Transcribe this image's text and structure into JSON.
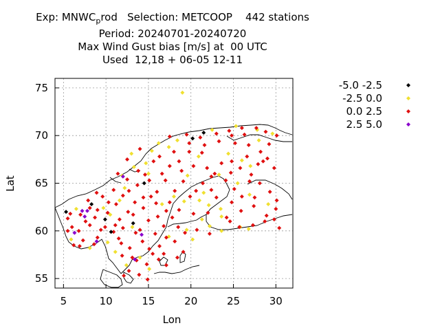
{
  "header": {
    "line1_pre": "Exp: MNWC",
    "line1_sub": "p",
    "line1_post": "rod   Selection: METCOOP    442 stations",
    "line2": "Period: 20240701-20240720",
    "line3": "Max Wind Gust bias [m/s] at  00 UTC",
    "line4": "Used  12,18 + 06-05 12-11"
  },
  "chart_data": {
    "type": "scatter",
    "xlabel": "Lon",
    "ylabel": "Lat",
    "xlim": [
      4,
      32
    ],
    "ylim": [
      54,
      76
    ],
    "xticks": [
      5,
      10,
      15,
      20,
      25,
      30
    ],
    "yticks": [
      55,
      60,
      65,
      70,
      75
    ],
    "grid": true,
    "legend_position": "top-right outside",
    "series": [
      {
        "name": "-5.0 -2.5",
        "color": "#000000",
        "points": [
          [
            5.3,
            62.0
          ],
          [
            8.3,
            62.8
          ],
          [
            13.2,
            60.8
          ],
          [
            14.5,
            65.0
          ],
          [
            21.5,
            70.3
          ],
          [
            20.2,
            69.7
          ],
          [
            9.9,
            61.2
          ],
          [
            10.6,
            59.9
          ]
        ]
      },
      {
        "name": "-2.5 0.0",
        "color": "#f0e030",
        "points": [
          [
            19.0,
            74.5
          ],
          [
            6.5,
            62.3
          ],
          [
            12.2,
            64.5
          ],
          [
            17.4,
            68.8
          ],
          [
            20.9,
            67.8
          ],
          [
            24.4,
            68.1
          ],
          [
            25.3,
            71.0
          ],
          [
            22.5,
            70.6
          ],
          [
            27.8,
            70.6
          ],
          [
            29.6,
            70.2
          ],
          [
            28.0,
            69.5
          ],
          [
            26.0,
            67.4
          ],
          [
            26.9,
            63.8
          ],
          [
            23.3,
            65.9
          ],
          [
            25.5,
            65.0
          ],
          [
            21.5,
            64.0
          ],
          [
            21.0,
            63.2
          ],
          [
            22.1,
            62.7
          ],
          [
            23.5,
            62.3
          ],
          [
            21.3,
            61.2
          ],
          [
            22.2,
            60.5
          ],
          [
            23.6,
            60.0
          ],
          [
            19.5,
            60.1
          ],
          [
            14.0,
            57.2
          ],
          [
            15.1,
            56.0
          ],
          [
            13.1,
            60.4
          ],
          [
            11.1,
            57.8
          ],
          [
            12.4,
            56.4
          ],
          [
            19.2,
            63.1
          ],
          [
            18.0,
            63.6
          ],
          [
            19.6,
            65.8
          ],
          [
            15.4,
            68.4
          ],
          [
            16.2,
            69.2
          ],
          [
            18.4,
            69.5
          ],
          [
            13.3,
            66.7
          ],
          [
            13.0,
            68.1
          ],
          [
            14.7,
            67.1
          ],
          [
            10.5,
            61.7
          ],
          [
            9.7,
            62.4
          ],
          [
            5.9,
            59.1
          ],
          [
            8.1,
            58.2
          ],
          [
            10.2,
            58.8
          ],
          [
            11.6,
            63.2
          ],
          [
            27.0,
            66.8
          ],
          [
            23.6,
            61.5
          ],
          [
            20.2,
            59.1
          ],
          [
            17.4,
            59.4
          ],
          [
            16.6,
            62.8
          ],
          [
            15.0,
            66.0
          ],
          [
            11.9,
            65.8
          ],
          [
            29.1,
            62.8
          ],
          [
            25.8,
            60.4
          ],
          [
            26.8,
            60.2
          ]
        ]
      },
      {
        "name": "0.0 2.5",
        "color": "#e01010",
        "points": [
          [
            5.5,
            61.3
          ],
          [
            6.0,
            60.4
          ],
          [
            5.5,
            60.0
          ],
          [
            6.8,
            60.0
          ],
          [
            7.6,
            61.0
          ],
          [
            8.7,
            61.4
          ],
          [
            9.9,
            60.4
          ],
          [
            10.9,
            59.9
          ],
          [
            11.6,
            61.2
          ],
          [
            12.6,
            62.0
          ],
          [
            13.4,
            63.0
          ],
          [
            14.4,
            62.4
          ],
          [
            15.3,
            63.6
          ],
          [
            16.1,
            61.5
          ],
          [
            16.8,
            60.5
          ],
          [
            17.8,
            61.4
          ],
          [
            18.6,
            62.2
          ],
          [
            17.1,
            59.3
          ],
          [
            18.1,
            58.9
          ],
          [
            16.3,
            58.4
          ],
          [
            15.5,
            57.6
          ],
          [
            14.3,
            58.9
          ],
          [
            13.5,
            59.8
          ],
          [
            12.8,
            58.2
          ],
          [
            13.6,
            56.9
          ],
          [
            14.8,
            56.5
          ],
          [
            12.7,
            55.8
          ],
          [
            13.9,
            55.4
          ],
          [
            11.8,
            58.7
          ],
          [
            8.1,
            60.6
          ],
          [
            7.3,
            59.0
          ],
          [
            6.2,
            58.5
          ],
          [
            9.0,
            59.3
          ],
          [
            10.2,
            61.9
          ],
          [
            11.2,
            62.8
          ],
          [
            12.0,
            63.7
          ],
          [
            13.7,
            64.8
          ],
          [
            15.1,
            65.3
          ],
          [
            16.6,
            66.0
          ],
          [
            17.5,
            66.8
          ],
          [
            18.6,
            67.3
          ],
          [
            19.8,
            68.3
          ],
          [
            21.6,
            69.0
          ],
          [
            23.3,
            69.4
          ],
          [
            24.8,
            70.0
          ],
          [
            26.3,
            70.1
          ],
          [
            27.7,
            70.8
          ],
          [
            28.8,
            70.4
          ],
          [
            30.1,
            70.0
          ],
          [
            29.2,
            69.1
          ],
          [
            28.2,
            68.3
          ],
          [
            26.6,
            67.8
          ],
          [
            25.8,
            66.6
          ],
          [
            24.7,
            66.1
          ],
          [
            24.1,
            65.3
          ],
          [
            22.4,
            65.7
          ],
          [
            21.4,
            65.0
          ],
          [
            20.6,
            64.2
          ],
          [
            19.9,
            63.6
          ],
          [
            17.5,
            63.0
          ],
          [
            16.0,
            64.1
          ],
          [
            14.4,
            63.5
          ],
          [
            17.0,
            65.3
          ],
          [
            18.9,
            66.3
          ],
          [
            15.6,
            67.3
          ],
          [
            13.8,
            66.3
          ],
          [
            12.5,
            65.4
          ],
          [
            10.9,
            64.3
          ],
          [
            9.6,
            63.6
          ],
          [
            8.1,
            62.4
          ],
          [
            7.0,
            61.7
          ],
          [
            20.3,
            61.8
          ],
          [
            22.0,
            61.9
          ],
          [
            24.2,
            61.4
          ],
          [
            25.9,
            62.1
          ],
          [
            27.4,
            62.6
          ],
          [
            28.9,
            61.6
          ],
          [
            30.0,
            62.3
          ],
          [
            29.3,
            64.1
          ],
          [
            28.1,
            65.0
          ],
          [
            27.1,
            65.9
          ],
          [
            29.8,
            66.6
          ],
          [
            28.5,
            67.3
          ],
          [
            26.0,
            63.6
          ],
          [
            24.8,
            63.0
          ],
          [
            23.0,
            63.5
          ],
          [
            22.4,
            64.3
          ],
          [
            25.1,
            64.4
          ],
          [
            24.6,
            61.0
          ],
          [
            25.7,
            60.4
          ],
          [
            27.3,
            60.6
          ],
          [
            28.7,
            61.0
          ],
          [
            29.8,
            61.2
          ],
          [
            30.4,
            60.3
          ],
          [
            18.5,
            60.4
          ],
          [
            19.3,
            59.8
          ],
          [
            20.7,
            60.1
          ],
          [
            22.2,
            59.7
          ],
          [
            13.2,
            61.7
          ],
          [
            11.1,
            60.6
          ],
          [
            9.0,
            62.2
          ],
          [
            7.9,
            63.2
          ],
          [
            10.3,
            63.0
          ],
          [
            12.7,
            64.2
          ],
          [
            14.6,
            65.9
          ],
          [
            16.3,
            67.8
          ],
          [
            18.0,
            68.3
          ],
          [
            19.8,
            69.2
          ],
          [
            21.1,
            69.8
          ],
          [
            23.0,
            70.2
          ],
          [
            25.2,
            69.2
          ],
          [
            26.8,
            69.0
          ],
          [
            27.9,
            67.0
          ],
          [
            26.9,
            65.2
          ],
          [
            30.1,
            63.2
          ],
          [
            23.6,
            67.1
          ],
          [
            21.9,
            66.6
          ],
          [
            20.3,
            66.8
          ],
          [
            19.1,
            65.2
          ],
          [
            18.1,
            64.2
          ],
          [
            17.1,
            62.1
          ],
          [
            15.9,
            62.9
          ],
          [
            15.0,
            61.1
          ],
          [
            15.8,
            59.7
          ],
          [
            16.8,
            57.6
          ],
          [
            15.1,
            58.1
          ],
          [
            14.0,
            60.1
          ],
          [
            12.0,
            60.3
          ],
          [
            11.5,
            59.2
          ],
          [
            9.4,
            60.1
          ],
          [
            8.6,
            58.6
          ],
          [
            6.9,
            58.4
          ],
          [
            5.8,
            61.8
          ],
          [
            11.9,
            57.4
          ],
          [
            13.1,
            57.2
          ],
          [
            14.9,
            54.9
          ],
          [
            12.1,
            55.3
          ],
          [
            19.1,
            57.8
          ],
          [
            18.4,
            57.2
          ],
          [
            17.1,
            56.4
          ],
          [
            16.2,
            57.0
          ],
          [
            24.5,
            70.5
          ],
          [
            26.0,
            70.8
          ],
          [
            8.9,
            64.0
          ],
          [
            11.4,
            66.0
          ],
          [
            12.5,
            67.5
          ],
          [
            14.0,
            68.6
          ],
          [
            17.5,
            69.9
          ],
          [
            19.5,
            70.1
          ],
          [
            29.0,
            67.6
          ],
          [
            27.5,
            63.5
          ],
          [
            24.8,
            67.3
          ],
          [
            21.3,
            68.2
          ],
          [
            22.8,
            66.0
          ]
        ]
      },
      {
        "name": "2.5 5.0",
        "color": "#8a00cc",
        "points": [
          [
            7.2,
            62.1
          ],
          [
            7.8,
            62.1
          ],
          [
            6.3,
            59.8
          ],
          [
            7.5,
            61.5
          ],
          [
            12.0,
            65.7
          ],
          [
            14.2,
            59.6
          ],
          [
            13.4,
            57.0
          ],
          [
            8.9,
            58.9
          ]
        ]
      }
    ]
  }
}
